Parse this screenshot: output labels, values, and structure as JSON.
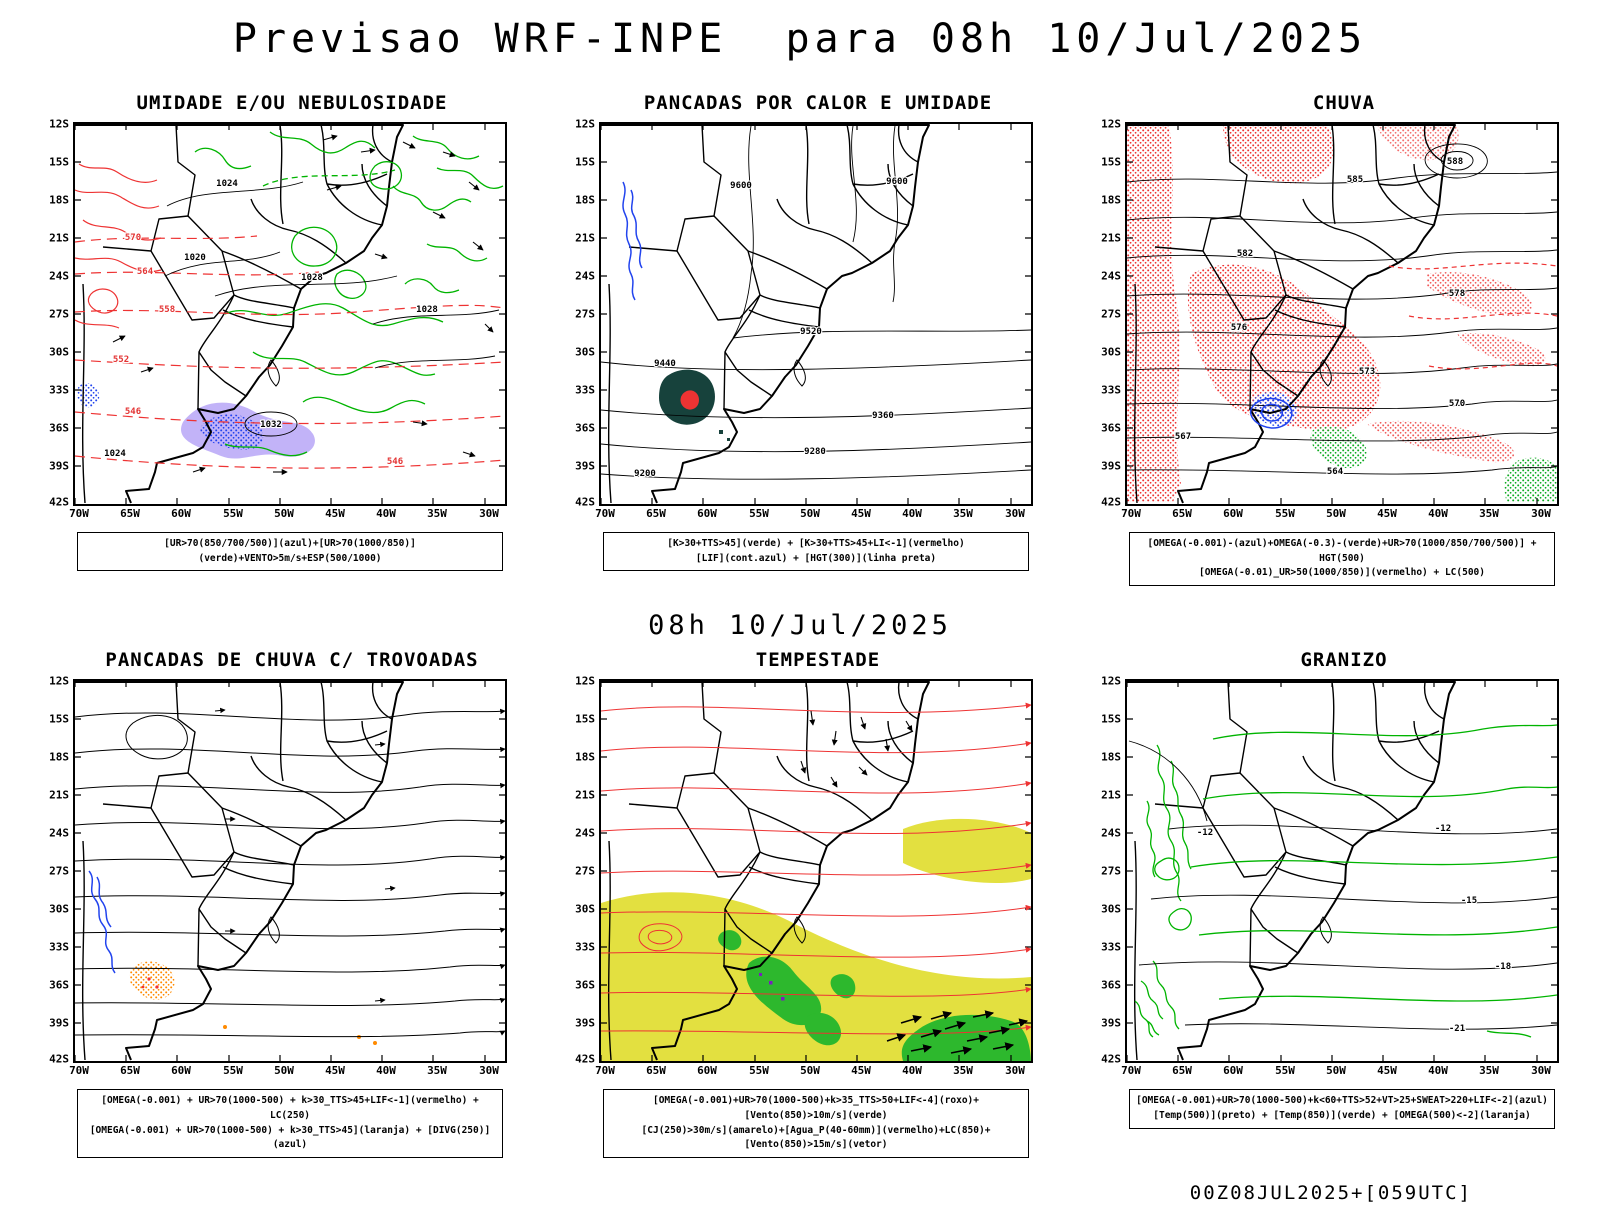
{
  "page": {
    "title": "Previsao WRF-INPE  para 08h 10/Jul/2025",
    "subtitle": "08h 10/Jul/2025",
    "footer": "00Z08JUL2025+[059UTC]"
  },
  "axes": {
    "lat": [
      "12S",
      "15S",
      "18S",
      "21S",
      "24S",
      "27S",
      "30S",
      "33S",
      "36S",
      "39S",
      "42S"
    ],
    "lon": [
      "70W",
      "65W",
      "60W",
      "55W",
      "50W",
      "45W",
      "40W",
      "35W",
      "30W"
    ]
  },
  "panels": [
    {
      "id": "umidade-nebulosidade",
      "title": "UMIDADE E/OU NEBULOSIDADE",
      "caption_lines": [
        "[UR>70(850/700/500)](azul)+[UR>70(1000/850)](verde)+VENTO>5m/s+ESP(500/1000)"
      ],
      "contour_labels": [
        "570",
        "564",
        "558",
        "552",
        "546",
        "546",
        "1020",
        "1024",
        "1028",
        "1028",
        "1032",
        "1024"
      ],
      "colors": {
        "verde": "#00b400",
        "vermelho": "#ee3333",
        "azul": "#2244ee",
        "roxo": "#b7a6f7",
        "preto": "#000000"
      }
    },
    {
      "id": "pancadas-calor-umidade",
      "title": "PANCADAS POR CALOR E UMIDADE",
      "caption_lines": [
        "[K>30+TTS>45](verde) + [K>30+TTS>45+LI<-1](vermelho)",
        "[LIF](cont.azul) + [HGT(300)](linha preta)"
      ],
      "contour_labels": [
        "9600",
        "9600",
        "9520",
        "9440",
        "9360",
        "9280",
        "9200"
      ],
      "colors": {
        "verde-escuro": "#17423c",
        "vermelho": "#ee3333",
        "azul": "#2244ee",
        "preto": "#000000"
      }
    },
    {
      "id": "chuva",
      "title": "CHUVA",
      "caption_lines": [
        "[OMEGA(-0.001)-(azul)+OMEGA(-0.3)-(verde)+UR>70(1000/850/700/500)] + HGT(500)",
        "[OMEGA(-0.01)_UR>50(1000/850)](vermelho) + LC(500)"
      ],
      "contour_labels": [
        "588",
        "585",
        "582",
        "578",
        "576",
        "573",
        "570",
        "567",
        "564"
      ],
      "colors": {
        "vermelho": "#ee3333",
        "verde": "#11aa22",
        "azul": "#2244ee",
        "preto": "#000000"
      }
    },
    {
      "id": "pancadas-chuva-trovoadas",
      "title": "PANCADAS DE CHUVA C/ TROVOADAS",
      "caption_lines": [
        "[OMEGA(-0.001) + UR>70(1000-500) + k>30_TTS>45+LIF<-1](vermelho) + LC(250)",
        "[OMEGA(-0.001) + UR>70(1000-500) + k>30_TTS>45](laranja) + [DIVG(250)](azul)"
      ],
      "contour_labels": [],
      "colors": {
        "laranja": "#ff8a00",
        "vermelho": "#ee3333",
        "azul": "#2244ee",
        "preto": "#000000"
      }
    },
    {
      "id": "tempestade",
      "title": "TEMPESTADE",
      "caption_lines": [
        "[OMEGA(-0.001)+UR>70(1000-500)+k>35_TTS>50+LIF<-4](roxo)+[Vento(850)>10m/s](verde)",
        "[CJ(250)>30m/s](amarelo)+[Agua_P(40-60mm)](vermelho)+LC(850)+[Vento(850)>15m/s](vetor)"
      ],
      "contour_labels": [],
      "colors": {
        "amarelo": "#e3e040",
        "verde": "#2db82d",
        "roxo": "#7a1fbf",
        "vermelho": "#ee3333",
        "preto": "#000000"
      }
    },
    {
      "id": "granizo",
      "title": "GRANIZO",
      "caption_lines": [
        "[OMEGA(-0.001)+UR>70(1000-500)+k<60+TTS>52+VT>25+SWEAT>220+LIF<-2](azul)",
        "[Temp(500)](preto) + [Temp(850)](verde) + [OMEGA(500)<-2](laranja)"
      ],
      "contour_labels": [
        "-12",
        "-12",
        "-15",
        "-18",
        "-21"
      ],
      "colors": {
        "verde": "#00c000",
        "preto": "#000000",
        "laranja": "#ff8a00",
        "azul": "#2244ee"
      }
    }
  ]
}
